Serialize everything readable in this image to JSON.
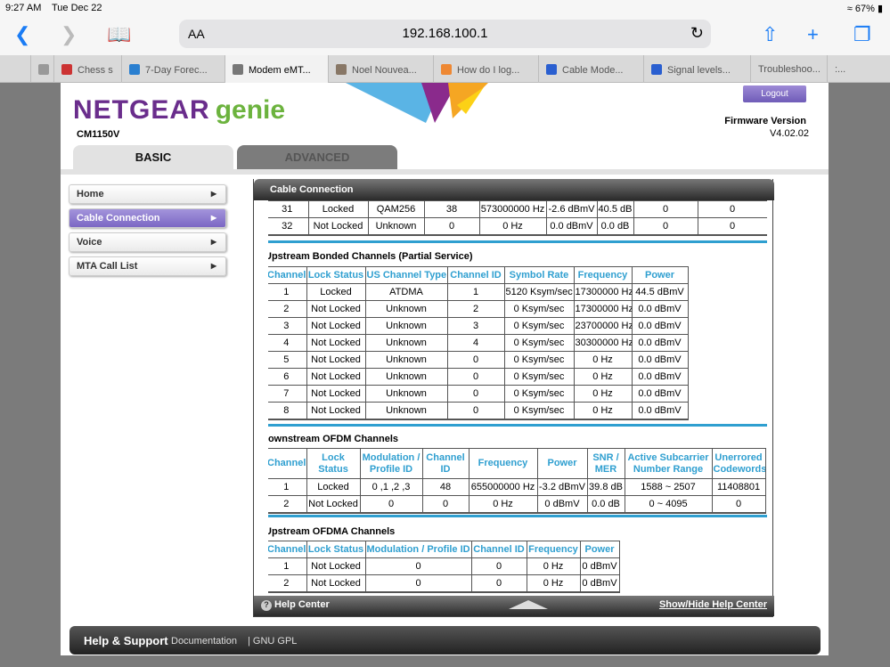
{
  "status": {
    "time": "9:27 AM",
    "date": "Tue Dec 22",
    "battery": "67%"
  },
  "browser": {
    "url": "192.168.100.1",
    "aa": "AA",
    "tabs": [
      {
        "label": "",
        "color": "#999"
      },
      {
        "label": "Chess s",
        "color": "#c33"
      },
      {
        "label": "7-Day Forec...",
        "color": "#2a7fd0"
      },
      {
        "label": "Modem eMT...",
        "color": "#777",
        "active": true
      },
      {
        "label": "Noel Nouvea...",
        "color": "#876"
      },
      {
        "label": "How do I log...",
        "color": "#e83"
      },
      {
        "label": "Cable Mode...",
        "color": "#2a5fd0"
      },
      {
        "label": "Signal levels...",
        "color": "#2a5fd0"
      },
      {
        "label": "Troubleshoo...",
        "color": ""
      },
      {
        "label": ":...",
        "color": ""
      }
    ]
  },
  "header": {
    "brand": "NETGEAR",
    "brand2": "genie",
    "model": "CM1150V",
    "logout": "Logout",
    "fw_label": "Firmware Version",
    "fw_value": "V4.02.02"
  },
  "main_tabs": [
    "BASIC",
    "ADVANCED"
  ],
  "sidebar": [
    {
      "label": "Home"
    },
    {
      "label": "Cable Connection",
      "active": true
    },
    {
      "label": "Voice"
    },
    {
      "label": "MTA Call List"
    }
  ],
  "panel": {
    "title": "Cable Connection",
    "help": "Help Center",
    "toggle": "Show/Hide Help Center"
  },
  "downstream_rows": [
    [
      "31",
      "Locked",
      "QAM256",
      "38",
      "573000000 Hz",
      "-2.6 dBmV",
      "40.5 dB",
      "0",
      "0"
    ],
    [
      "32",
      "Not Locked",
      "Unknown",
      "0",
      "0 Hz",
      "0.0 dBmV",
      "0.0 dB",
      "0",
      "0"
    ]
  ],
  "upstream": {
    "title": "Upstream Bonded Channels (Partial Service)",
    "headers": [
      "Channel",
      "Lock Status",
      "US Channel Type",
      "Channel ID",
      "Symbol Rate",
      "Frequency",
      "Power"
    ],
    "rows": [
      [
        "1",
        "Locked",
        "ATDMA",
        "1",
        "5120 Ksym/sec",
        "17300000 Hz",
        "44.5 dBmV"
      ],
      [
        "2",
        "Not Locked",
        "Unknown",
        "2",
        "0 Ksym/sec",
        "17300000 Hz",
        "0.0 dBmV"
      ],
      [
        "3",
        "Not Locked",
        "Unknown",
        "3",
        "0 Ksym/sec",
        "23700000 Hz",
        "0.0 dBmV"
      ],
      [
        "4",
        "Not Locked",
        "Unknown",
        "4",
        "0 Ksym/sec",
        "30300000 Hz",
        "0.0 dBmV"
      ],
      [
        "5",
        "Not Locked",
        "Unknown",
        "0",
        "0 Ksym/sec",
        "0 Hz",
        "0.0 dBmV"
      ],
      [
        "6",
        "Not Locked",
        "Unknown",
        "0",
        "0 Ksym/sec",
        "0 Hz",
        "0.0 dBmV"
      ],
      [
        "7",
        "Not Locked",
        "Unknown",
        "0",
        "0 Ksym/sec",
        "0 Hz",
        "0.0 dBmV"
      ],
      [
        "8",
        "Not Locked",
        "Unknown",
        "0",
        "0 Ksym/sec",
        "0 Hz",
        "0.0 dBmV"
      ]
    ]
  },
  "ofdm": {
    "title": "Downstream OFDM Channels",
    "headers": [
      "Channel",
      "Lock Status",
      "Modulation / Profile ID",
      "Channel ID",
      "Frequency",
      "Power",
      "SNR / MER",
      "Active Subcarrier Number Range",
      "Unerrored Codewords"
    ],
    "rows": [
      [
        "1",
        "Locked",
        "0 ,1 ,2 ,3",
        "48",
        "655000000 Hz",
        "-3.2 dBmV",
        "39.8 dB",
        "1588 ~ 2507",
        "11408801"
      ],
      [
        "2",
        "Not Locked",
        "0",
        "0",
        "0 Hz",
        "0 dBmV",
        "0.0 dB",
        "0 ~ 4095",
        "0"
      ]
    ]
  },
  "ofdma": {
    "title": "Upstream OFDMA Channels",
    "headers": [
      "Channel",
      "Lock Status",
      "Modulation / Profile ID",
      "Channel ID",
      "Frequency",
      "Power"
    ],
    "rows": [
      [
        "1",
        "Not Locked",
        "0",
        "0",
        "0 Hz",
        "0 dBmV"
      ],
      [
        "2",
        "Not Locked",
        "0",
        "0",
        "0 Hz",
        "0 dBmV"
      ]
    ]
  },
  "footer": {
    "title": "Help & Support",
    "links": [
      "Documentation",
      "| GNU GPL"
    ]
  },
  "colors": {
    "accent": "#2f9fd0",
    "brand": "#6a2d8c",
    "genie": "#6cb33e",
    "active_nav": "#7b67c4"
  }
}
